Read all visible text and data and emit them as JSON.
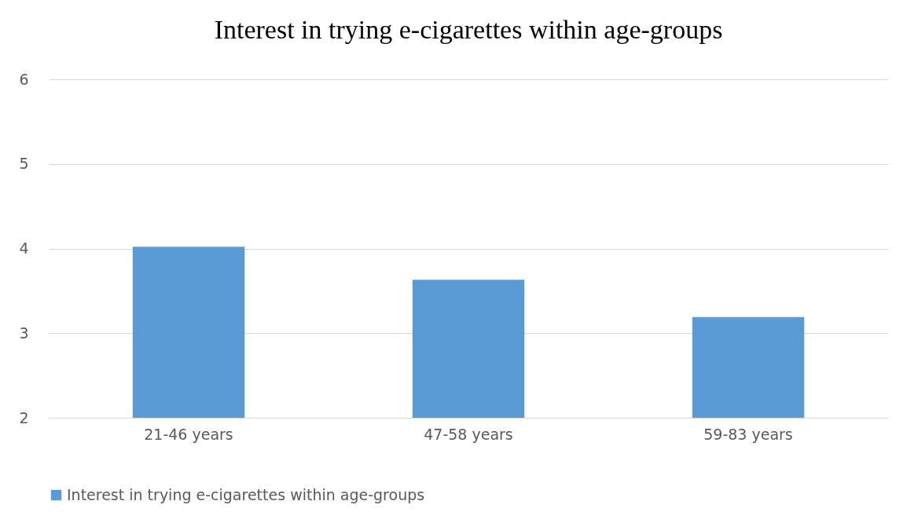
{
  "chart_data": {
    "type": "bar",
    "title": "Interest in trying e-cigarettes within age-groups",
    "categories": [
      "21-46 years",
      "47-58 years",
      "59-83 years"
    ],
    "series": [
      {
        "name": "Interest in trying e-cigarettes within age-groups",
        "color": "#5b9bd5",
        "values": [
          4.02,
          3.63,
          3.19
        ]
      }
    ],
    "ylim": [
      2,
      6
    ],
    "yticks": [
      2,
      3,
      4,
      5,
      6
    ],
    "grid": "y",
    "legend": "bottom"
  }
}
